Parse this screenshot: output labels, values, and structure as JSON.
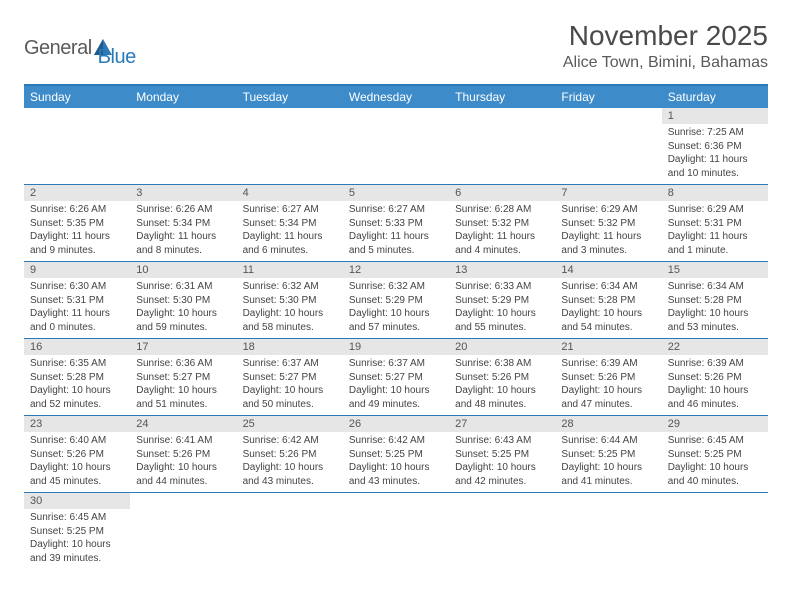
{
  "logo": {
    "text1": "General",
    "text2": "Blue"
  },
  "title": "November 2025",
  "location": "Alice Town, Bimini, Bahamas",
  "colors": {
    "header_bg": "#3d8bc9",
    "border": "#2a7ab9",
    "daynum_bg": "#e6e6e6",
    "text": "#444444"
  },
  "weekdays": [
    "Sunday",
    "Monday",
    "Tuesday",
    "Wednesday",
    "Thursday",
    "Friday",
    "Saturday"
  ],
  "weeks": [
    [
      null,
      null,
      null,
      null,
      null,
      null,
      {
        "n": "1",
        "sr": "7:25 AM",
        "ss": "6:36 PM",
        "dl": "11 hours and 10 minutes."
      }
    ],
    [
      {
        "n": "2",
        "sr": "6:26 AM",
        "ss": "5:35 PM",
        "dl": "11 hours and 9 minutes."
      },
      {
        "n": "3",
        "sr": "6:26 AM",
        "ss": "5:34 PM",
        "dl": "11 hours and 8 minutes."
      },
      {
        "n": "4",
        "sr": "6:27 AM",
        "ss": "5:34 PM",
        "dl": "11 hours and 6 minutes."
      },
      {
        "n": "5",
        "sr": "6:27 AM",
        "ss": "5:33 PM",
        "dl": "11 hours and 5 minutes."
      },
      {
        "n": "6",
        "sr": "6:28 AM",
        "ss": "5:32 PM",
        "dl": "11 hours and 4 minutes."
      },
      {
        "n": "7",
        "sr": "6:29 AM",
        "ss": "5:32 PM",
        "dl": "11 hours and 3 minutes."
      },
      {
        "n": "8",
        "sr": "6:29 AM",
        "ss": "5:31 PM",
        "dl": "11 hours and 1 minute."
      }
    ],
    [
      {
        "n": "9",
        "sr": "6:30 AM",
        "ss": "5:31 PM",
        "dl": "11 hours and 0 minutes."
      },
      {
        "n": "10",
        "sr": "6:31 AM",
        "ss": "5:30 PM",
        "dl": "10 hours and 59 minutes."
      },
      {
        "n": "11",
        "sr": "6:32 AM",
        "ss": "5:30 PM",
        "dl": "10 hours and 58 minutes."
      },
      {
        "n": "12",
        "sr": "6:32 AM",
        "ss": "5:29 PM",
        "dl": "10 hours and 57 minutes."
      },
      {
        "n": "13",
        "sr": "6:33 AM",
        "ss": "5:29 PM",
        "dl": "10 hours and 55 minutes."
      },
      {
        "n": "14",
        "sr": "6:34 AM",
        "ss": "5:28 PM",
        "dl": "10 hours and 54 minutes."
      },
      {
        "n": "15",
        "sr": "6:34 AM",
        "ss": "5:28 PM",
        "dl": "10 hours and 53 minutes."
      }
    ],
    [
      {
        "n": "16",
        "sr": "6:35 AM",
        "ss": "5:28 PM",
        "dl": "10 hours and 52 minutes."
      },
      {
        "n": "17",
        "sr": "6:36 AM",
        "ss": "5:27 PM",
        "dl": "10 hours and 51 minutes."
      },
      {
        "n": "18",
        "sr": "6:37 AM",
        "ss": "5:27 PM",
        "dl": "10 hours and 50 minutes."
      },
      {
        "n": "19",
        "sr": "6:37 AM",
        "ss": "5:27 PM",
        "dl": "10 hours and 49 minutes."
      },
      {
        "n": "20",
        "sr": "6:38 AM",
        "ss": "5:26 PM",
        "dl": "10 hours and 48 minutes."
      },
      {
        "n": "21",
        "sr": "6:39 AM",
        "ss": "5:26 PM",
        "dl": "10 hours and 47 minutes."
      },
      {
        "n": "22",
        "sr": "6:39 AM",
        "ss": "5:26 PM",
        "dl": "10 hours and 46 minutes."
      }
    ],
    [
      {
        "n": "23",
        "sr": "6:40 AM",
        "ss": "5:26 PM",
        "dl": "10 hours and 45 minutes."
      },
      {
        "n": "24",
        "sr": "6:41 AM",
        "ss": "5:26 PM",
        "dl": "10 hours and 44 minutes."
      },
      {
        "n": "25",
        "sr": "6:42 AM",
        "ss": "5:26 PM",
        "dl": "10 hours and 43 minutes."
      },
      {
        "n": "26",
        "sr": "6:42 AM",
        "ss": "5:25 PM",
        "dl": "10 hours and 43 minutes."
      },
      {
        "n": "27",
        "sr": "6:43 AM",
        "ss": "5:25 PM",
        "dl": "10 hours and 42 minutes."
      },
      {
        "n": "28",
        "sr": "6:44 AM",
        "ss": "5:25 PM",
        "dl": "10 hours and 41 minutes."
      },
      {
        "n": "29",
        "sr": "6:45 AM",
        "ss": "5:25 PM",
        "dl": "10 hours and 40 minutes."
      }
    ],
    [
      {
        "n": "30",
        "sr": "6:45 AM",
        "ss": "5:25 PM",
        "dl": "10 hours and 39 minutes."
      },
      null,
      null,
      null,
      null,
      null,
      null
    ]
  ],
  "labels": {
    "sunrise": "Sunrise:",
    "sunset": "Sunset:",
    "daylight": "Daylight:"
  }
}
